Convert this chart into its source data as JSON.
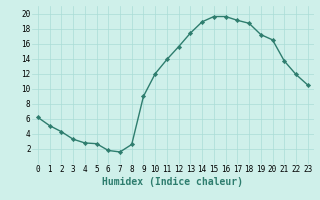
{
  "x": [
    0,
    1,
    2,
    3,
    4,
    5,
    6,
    7,
    8,
    9,
    10,
    11,
    12,
    13,
    14,
    15,
    16,
    17,
    18,
    19,
    20,
    21,
    22,
    23
  ],
  "y": [
    6.2,
    5.1,
    4.3,
    3.3,
    2.8,
    2.7,
    1.8,
    1.6,
    2.6,
    9.0,
    12.0,
    13.9,
    15.6,
    17.4,
    18.9,
    19.6,
    19.6,
    19.1,
    18.7,
    17.2,
    16.5,
    13.7,
    11.9,
    10.5
  ],
  "line_color": "#2e7d6e",
  "marker": "D",
  "marker_size": 2.2,
  "bg_color": "#cff0ea",
  "grid_color": "#aaddd6",
  "xlabel": "Humidex (Indice chaleur)",
  "xlim": [
    -0.5,
    23.5
  ],
  "ylim": [
    0,
    21
  ],
  "yticks": [
    2,
    4,
    6,
    8,
    10,
    12,
    14,
    16,
    18,
    20
  ],
  "xticks": [
    0,
    1,
    2,
    3,
    4,
    5,
    6,
    7,
    8,
    9,
    10,
    11,
    12,
    13,
    14,
    15,
    16,
    17,
    18,
    19,
    20,
    21,
    22,
    23
  ],
  "xlabel_fontsize": 7,
  "tick_fontsize": 5.5,
  "line_width": 1.0
}
